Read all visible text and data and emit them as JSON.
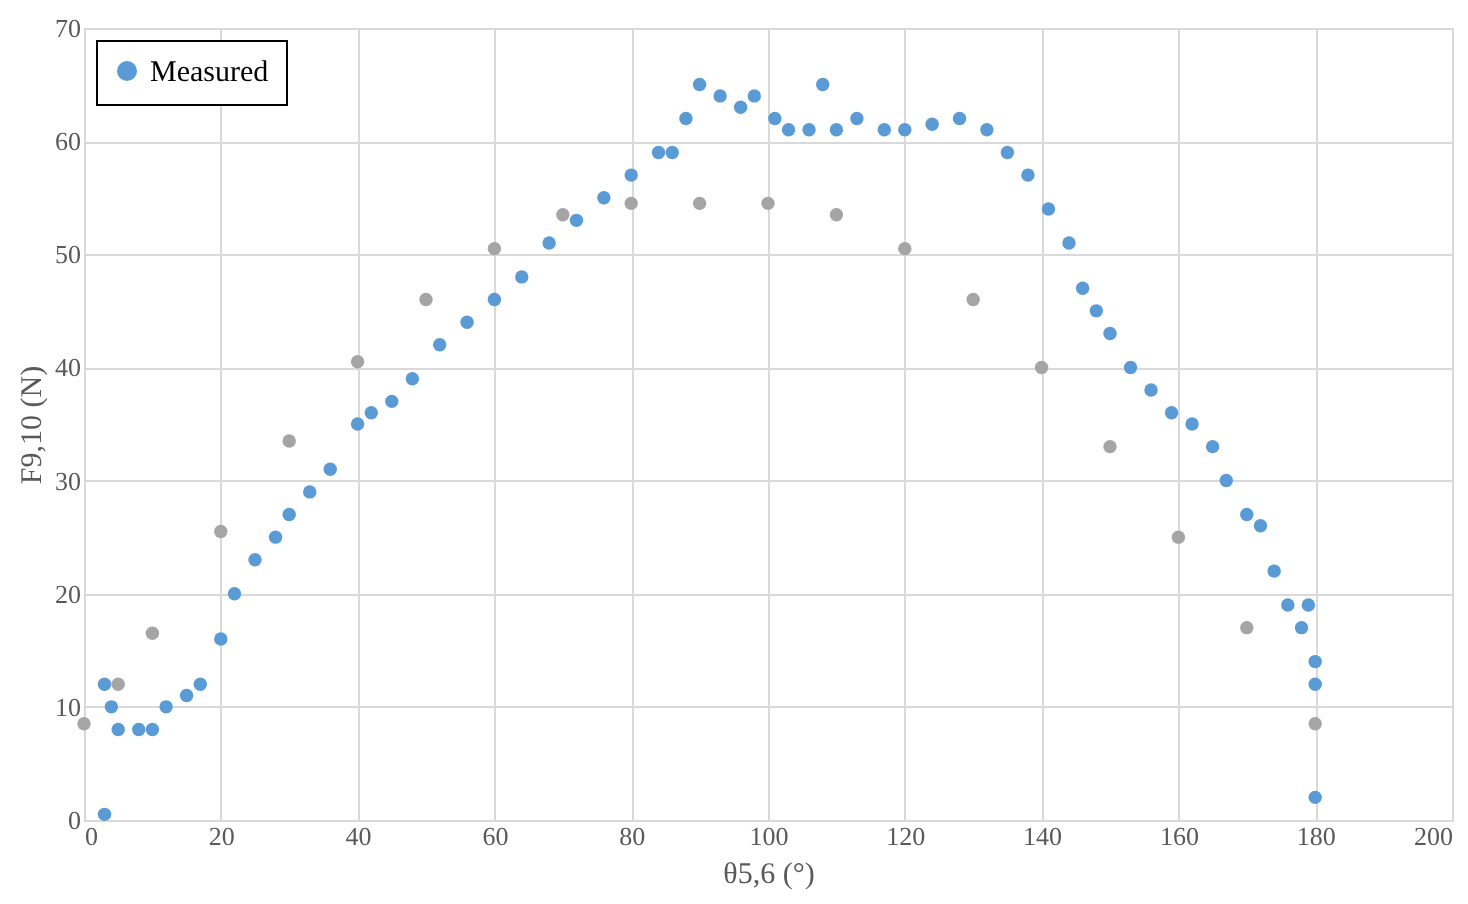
{
  "chart_data": {
    "type": "scatter",
    "xlabel": "θ5,6 (°)",
    "ylabel": "F9,10 (N)",
    "xlim": [
      0,
      200
    ],
    "ylim": [
      0,
      70
    ],
    "xticks": [
      0,
      20,
      40,
      60,
      80,
      100,
      120,
      140,
      160,
      180,
      200
    ],
    "yticks": [
      0,
      10,
      20,
      30,
      40,
      50,
      60,
      70
    ],
    "grid": true,
    "legend": "top left",
    "marker": "circle",
    "series": [
      {
        "name": "Measured",
        "color": "#5b9bd5",
        "x": [
          3,
          3,
          4,
          5,
          8,
          10,
          12,
          15,
          17,
          20,
          22,
          25,
          28,
          30,
          33,
          36,
          40,
          42,
          45,
          48,
          52,
          56,
          60,
          64,
          68,
          72,
          76,
          80,
          84,
          86,
          88,
          90,
          93,
          96,
          98,
          101,
          103,
          106,
          108,
          110,
          113,
          117,
          120,
          124,
          128,
          132,
          135,
          138,
          141,
          144,
          146,
          148,
          150,
          153,
          156,
          159,
          162,
          165,
          167,
          170,
          172,
          174,
          176,
          178,
          179,
          180,
          180,
          180
        ],
        "values": [
          0.5,
          12,
          10,
          8,
          8,
          8,
          10,
          11,
          12,
          16,
          20,
          23,
          25,
          27,
          29,
          31,
          35,
          36,
          37,
          39,
          42,
          44,
          46,
          48,
          51,
          53,
          55,
          57,
          59,
          59,
          62,
          65,
          64,
          63,
          64,
          62,
          61,
          61,
          65,
          61,
          62,
          61,
          61,
          61.5,
          62,
          61,
          59,
          57,
          54,
          51,
          47,
          45,
          43,
          40,
          38,
          36,
          35,
          33,
          30,
          27,
          26,
          22,
          19,
          17,
          19,
          12,
          2,
          14
        ]
      },
      {
        "color": "#a5a5a5",
        "x": [
          0,
          5,
          10,
          20,
          30,
          40,
          50,
          60,
          70,
          80,
          90,
          100,
          110,
          120,
          130,
          140,
          150,
          160,
          170,
          180
        ],
        "values": [
          8.5,
          12,
          16.5,
          25.5,
          33.5,
          40.5,
          46,
          50.5,
          53.5,
          54.5,
          54.5,
          54.5,
          53.5,
          50.5,
          46,
          40,
          33,
          25,
          17,
          8.5
        ]
      }
    ]
  }
}
